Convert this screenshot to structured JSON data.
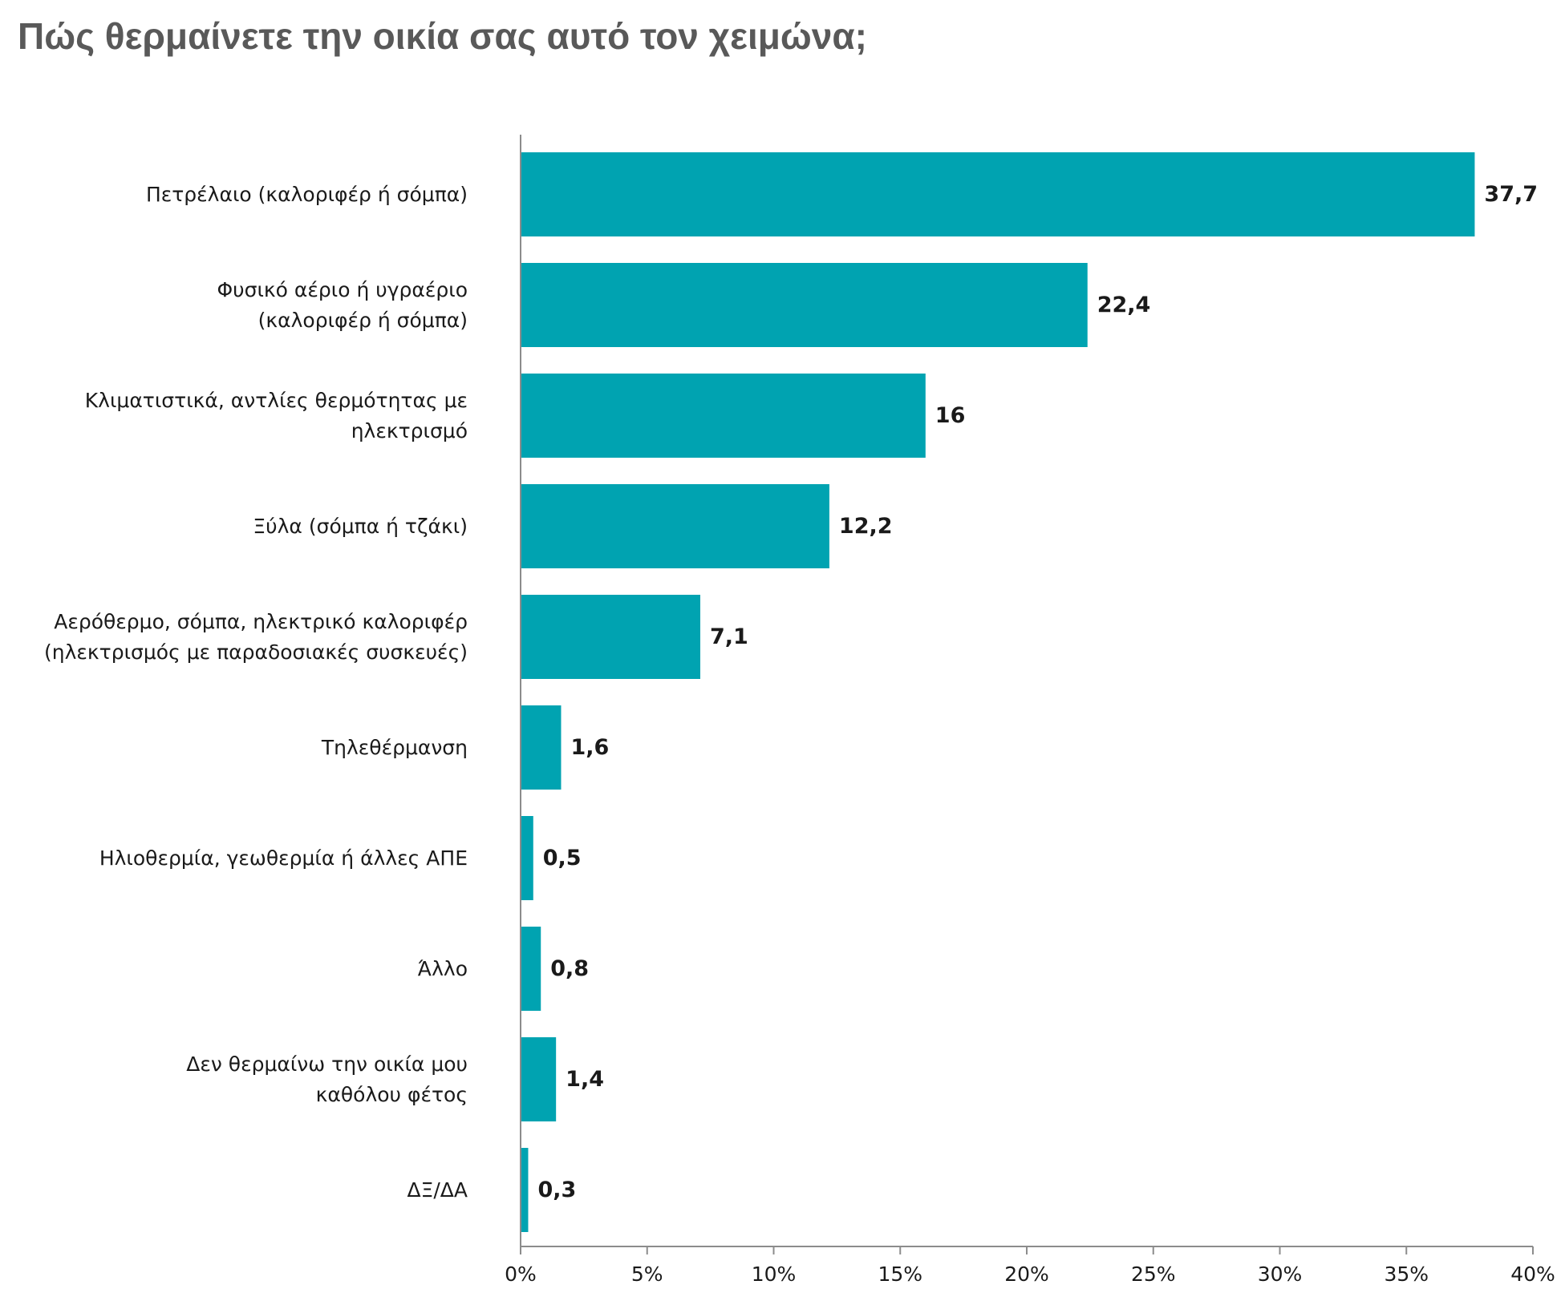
{
  "chart_data": {
    "type": "bar",
    "orientation": "horizontal",
    "title": "Πώς θερμαίνετε την οικία σας αυτό τον χειμώνα;",
    "categories": [
      [
        "Πετρέλαιο (καλοριφέρ ή σόμπα)"
      ],
      [
        "Φυσικό αέριο ή υγραέριο",
        "(καλοριφέρ ή σόμπα)"
      ],
      [
        "Κλιματιστικά, αντλίες θερμότητας με",
        "ηλεκτρισμό"
      ],
      [
        "Ξύλα (σόμπα ή τζάκι)"
      ],
      [
        "Αερόθερμο, σόμπα, ηλεκτρικό καλοριφέρ",
        "(ηλεκτρισμός με παραδοσιακές συσκευές)"
      ],
      [
        "Τηλεθέρμανση"
      ],
      [
        "Ηλιοθερμία, γεωθερμία ή άλλες ΑΠΕ"
      ],
      [
        "Άλλο"
      ],
      [
        "Δεν θερμαίνω την οικία μου",
        "καθόλου φέτος"
      ],
      [
        "ΔΞ/ΔΑ"
      ]
    ],
    "values": [
      37.7,
      22.4,
      16,
      12.2,
      7.1,
      1.6,
      0.5,
      0.8,
      1.4,
      0.3
    ],
    "value_labels": [
      "37,7",
      "22,4",
      "16",
      "12,2",
      "7,1",
      "1,6",
      "0,5",
      "0,8",
      "1,4",
      "0,3"
    ],
    "xlim": [
      0,
      40
    ],
    "x_ticks": [
      "0%",
      "5%",
      "10%",
      "15%",
      "20%",
      "25%",
      "30%",
      "35%",
      "40%"
    ],
    "bar_color": "#00a3b1",
    "axis_color": "#8c8c8c",
    "grid": false,
    "legend": "none"
  }
}
